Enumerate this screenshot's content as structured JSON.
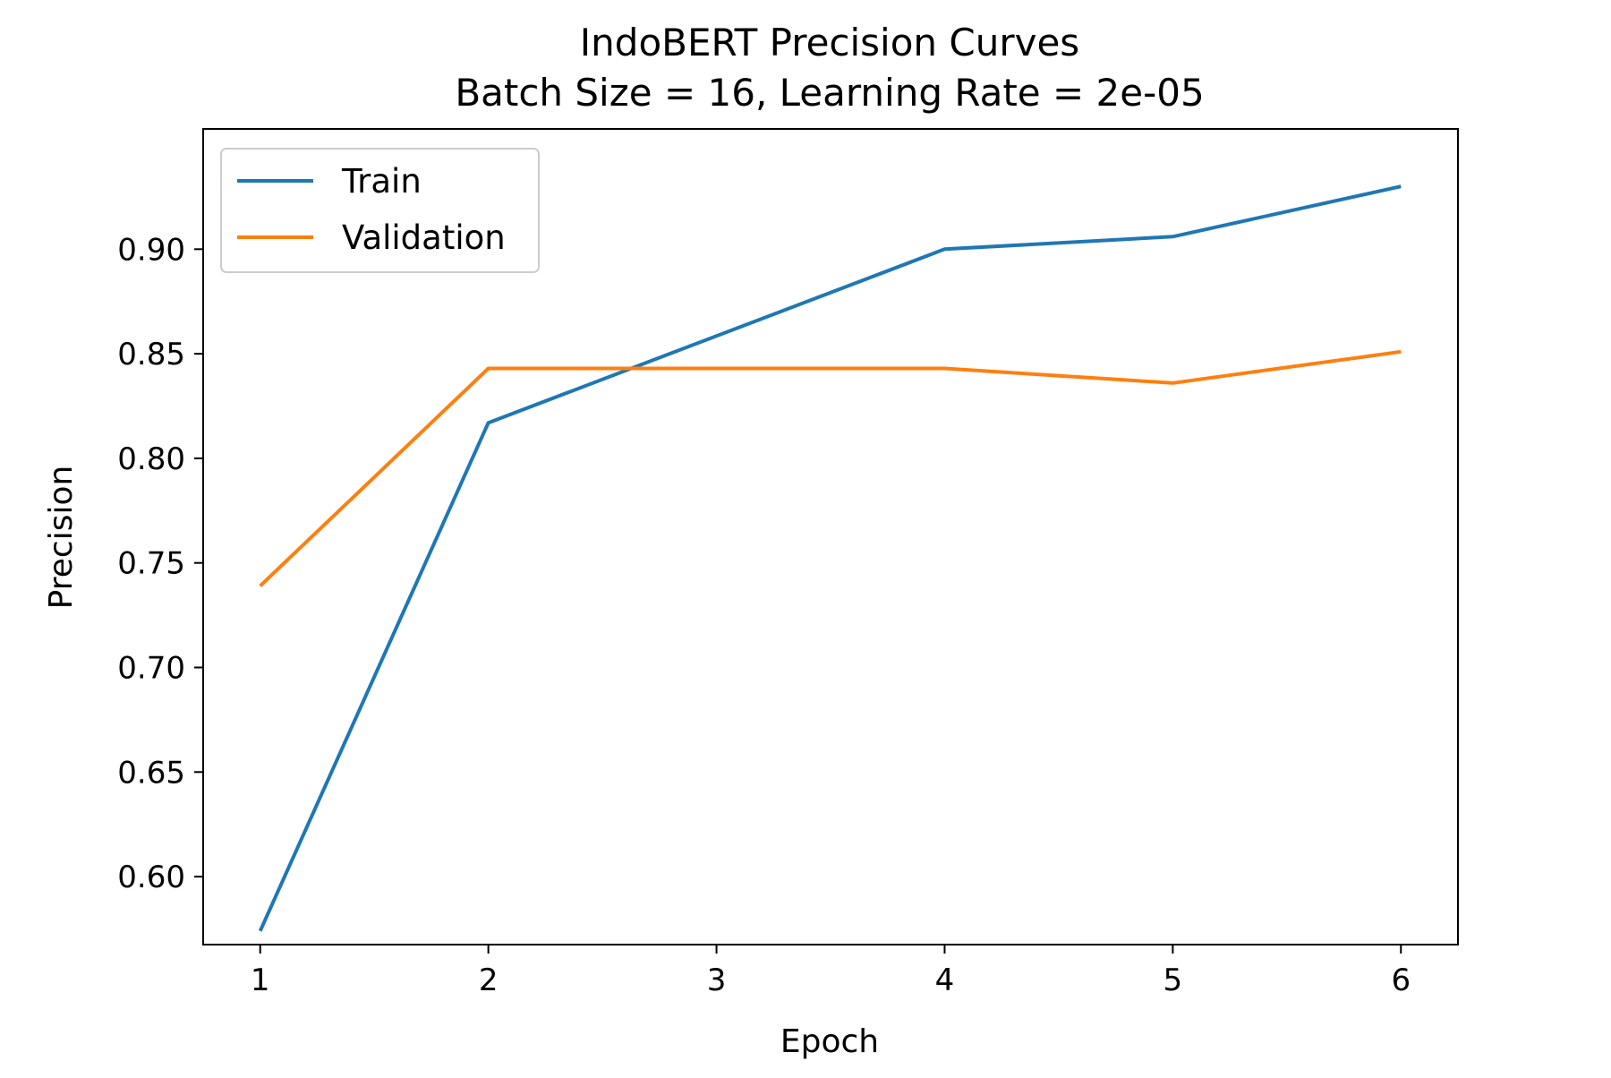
{
  "chart_data": {
    "type": "line",
    "title": "IndoBERT Precision Curves",
    "subtitle": "Batch Size = 16, Learning Rate = 2e-05",
    "xlabel": "Epoch",
    "ylabel": "Precision",
    "x": [
      1,
      2,
      3,
      4,
      5,
      6
    ],
    "xticks": [
      "1",
      "2",
      "3",
      "4",
      "5",
      "6"
    ],
    "yticks": [
      "0.60",
      "0.65",
      "0.70",
      "0.75",
      "0.80",
      "0.85",
      "0.90"
    ],
    "xlim": [
      0.75,
      6.25
    ],
    "ylim": [
      0.5675,
      0.9575
    ],
    "grid": false,
    "legend_position": "upper-left",
    "series": [
      {
        "name": "Train",
        "color": "#1f77b4",
        "x": [
          1,
          2,
          4,
          5,
          6
        ],
        "values": [
          0.574,
          0.817,
          0.9,
          0.906,
          0.93
        ]
      },
      {
        "name": "Validation",
        "color": "#ff7f0e",
        "x": [
          1,
          2,
          4,
          5,
          6
        ],
        "values": [
          0.739,
          0.843,
          0.843,
          0.836,
          0.851
        ]
      }
    ]
  }
}
